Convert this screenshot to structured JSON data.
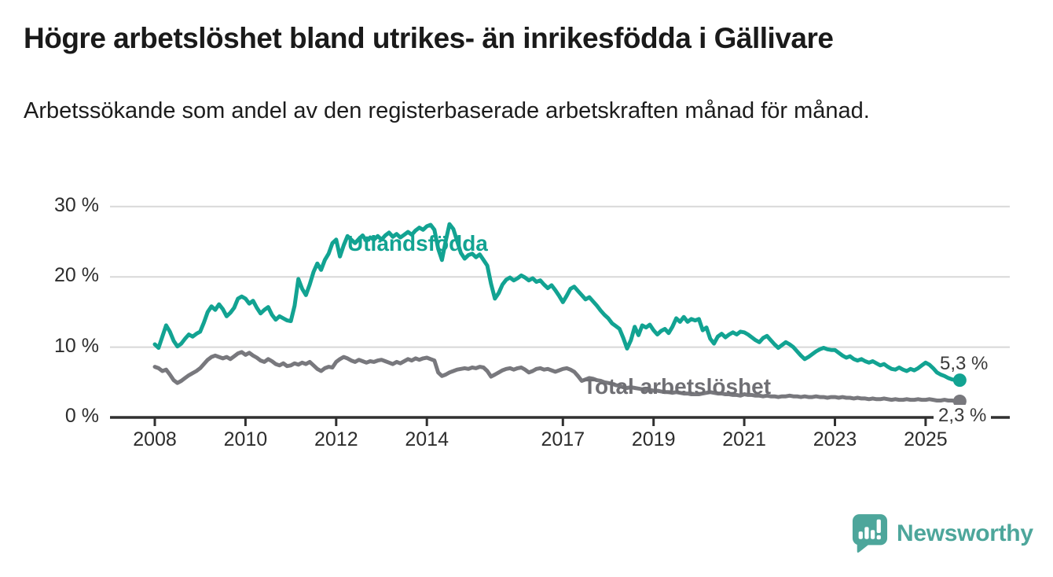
{
  "header": {
    "title": "Högre arbetslöshet bland utrikes- än inrikesfödda i Gällivare",
    "subtitle": "Arbetssökande som andel av den registerbaserade arbetskraften månad för månad."
  },
  "footer": {
    "brand": "Newsworthy",
    "brand_icon": "speech-bubble-bar-chart-icon",
    "brand_color": "#4da69b"
  },
  "colors": {
    "foreign_born_line": "#12a392",
    "total_line": "#78787d",
    "total_label": "#6f6f74",
    "end_label_text": "#3a3a3a",
    "axis": "#303030",
    "gridline": "#d8d8d8",
    "tick_text": "#2d2d2d"
  },
  "chart_data": {
    "type": "line",
    "title": "Högre arbetslöshet bland utrikes- än inrikesfödda i Gällivare",
    "subtitle": "Arbetssökande som andel av den registerbaserade arbetskraften månad för månad.",
    "grid": "horizontal-only",
    "legend": "direct-line-labels",
    "x_axis": {
      "ticks": [
        2008,
        2010,
        2012,
        2014,
        2017,
        2019,
        2021,
        2023,
        2025
      ],
      "tick_labels": [
        "2008",
        "2010",
        "2012",
        "2014",
        "2017",
        "2019",
        "2021",
        "2023",
        "2025"
      ],
      "range_years": [
        2007.0,
        2026.9
      ]
    },
    "y_axis": {
      "ticks": [
        0,
        10,
        20,
        30
      ],
      "tick_labels": [
        "0 %",
        "10 %",
        "20 %",
        "30 %"
      ],
      "unit": "%",
      "range": [
        0,
        31
      ]
    },
    "series": [
      {
        "name": "Utlandsfödda",
        "color": "#12a392",
        "start": "2008-01",
        "frequency": "monthly",
        "end_label": "5,3 %",
        "end_value": 5.3,
        "values": [
          10.4,
          9.9,
          11.5,
          13.1,
          12.2,
          10.9,
          10.1,
          10.5,
          11.2,
          11.8,
          11.5,
          11.9,
          12.2,
          13.5,
          15.0,
          15.8,
          15.3,
          16.1,
          15.4,
          14.4,
          14.9,
          15.6,
          16.9,
          17.2,
          16.9,
          16.2,
          16.6,
          15.6,
          14.8,
          15.3,
          15.7,
          14.6,
          13.9,
          14.4,
          14.1,
          13.8,
          13.7,
          15.9,
          19.7,
          18.3,
          17.4,
          18.9,
          20.7,
          21.9,
          21.0,
          22.4,
          23.3,
          24.8,
          25.3,
          22.9,
          24.5,
          25.8,
          25.3,
          24.8,
          25.4,
          25.9,
          25.1,
          25.6,
          25.3,
          25.8,
          25.3,
          25.9,
          26.3,
          25.7,
          26.1,
          25.6,
          26.0,
          26.4,
          26.0,
          26.6,
          27.0,
          26.7,
          27.2,
          27.4,
          26.7,
          24.0,
          22.4,
          25.1,
          27.5,
          26.8,
          25.1,
          23.4,
          22.6,
          23.1,
          23.3,
          22.8,
          23.2,
          22.4,
          21.6,
          19.0,
          16.9,
          17.7,
          18.9,
          19.6,
          19.9,
          19.5,
          19.8,
          20.2,
          19.9,
          19.5,
          19.8,
          19.3,
          19.5,
          18.9,
          18.4,
          18.8,
          18.1,
          17.3,
          16.4,
          17.3,
          18.3,
          18.6,
          18.0,
          17.4,
          16.8,
          17.1,
          16.5,
          15.9,
          15.2,
          14.6,
          14.1,
          13.4,
          13.0,
          12.6,
          11.3,
          9.8,
          11.0,
          12.9,
          11.7,
          13.1,
          12.8,
          13.2,
          12.4,
          11.8,
          12.3,
          12.6,
          12.0,
          12.9,
          14.1,
          13.6,
          14.3,
          13.6,
          14.0,
          13.8,
          14.0,
          12.4,
          12.8,
          11.2,
          10.5,
          11.5,
          11.9,
          11.4,
          11.8,
          12.1,
          11.8,
          12.2,
          12.1,
          11.8,
          11.4,
          11.0,
          10.7,
          11.3,
          11.6,
          11.0,
          10.4,
          9.9,
          10.3,
          10.7,
          10.4,
          10.0,
          9.4,
          8.8,
          8.3,
          8.6,
          9.0,
          9.4,
          9.7,
          9.9,
          9.7,
          9.6,
          9.6,
          9.2,
          8.8,
          8.5,
          8.7,
          8.3,
          8.1,
          8.3,
          8.0,
          7.8,
          8.0,
          7.7,
          7.4,
          7.6,
          7.2,
          6.9,
          6.8,
          7.1,
          6.8,
          6.6,
          6.9,
          6.7,
          7.0,
          7.4,
          7.8,
          7.5,
          7.0,
          6.4,
          6.1,
          5.9,
          5.6,
          5.4,
          5.3
        ]
      },
      {
        "name": "Total arbetslöshet",
        "color": "#78787d",
        "start": "2008-01",
        "frequency": "monthly",
        "end_label": "2,3 %",
        "end_value": 2.3,
        "values": [
          7.2,
          7.0,
          6.6,
          6.8,
          6.1,
          5.3,
          4.9,
          5.2,
          5.6,
          6.0,
          6.3,
          6.6,
          7.0,
          7.6,
          8.2,
          8.6,
          8.8,
          8.6,
          8.4,
          8.6,
          8.3,
          8.7,
          9.1,
          9.3,
          8.9,
          9.2,
          8.8,
          8.5,
          8.1,
          7.9,
          8.3,
          8.0,
          7.6,
          7.4,
          7.7,
          7.3,
          7.4,
          7.7,
          7.5,
          7.8,
          7.6,
          7.9,
          7.4,
          6.9,
          6.6,
          7.0,
          7.2,
          7.1,
          7.9,
          8.3,
          8.6,
          8.4,
          8.1,
          7.9,
          8.2,
          8.0,
          7.8,
          8.0,
          7.9,
          8.1,
          8.2,
          8.0,
          7.8,
          7.6,
          7.9,
          7.7,
          8.0,
          8.3,
          8.1,
          8.4,
          8.2,
          8.4,
          8.5,
          8.3,
          8.1,
          6.4,
          5.9,
          6.1,
          6.4,
          6.6,
          6.8,
          6.9,
          7.0,
          6.9,
          7.1,
          7.0,
          7.2,
          7.1,
          6.6,
          5.8,
          6.1,
          6.4,
          6.7,
          6.9,
          7.0,
          6.8,
          7.0,
          7.1,
          6.8,
          6.4,
          6.6,
          6.9,
          7.0,
          6.8,
          6.9,
          6.7,
          6.5,
          6.7,
          6.9,
          7.0,
          6.8,
          6.5,
          5.9,
          5.2,
          5.4,
          5.6,
          5.5,
          5.3,
          5.2,
          5.0,
          4.9,
          4.8,
          4.6,
          4.5,
          4.3,
          4.2,
          4.3,
          4.2,
          4.1,
          4.0,
          3.9,
          3.9,
          3.8,
          3.8,
          3.7,
          3.6,
          3.6,
          3.5,
          3.6,
          3.5,
          3.4,
          3.4,
          3.3,
          3.3,
          3.3,
          3.4,
          3.5,
          3.6,
          3.5,
          3.4,
          3.4,
          3.3,
          3.3,
          3.2,
          3.2,
          3.1,
          3.3,
          3.2,
          3.2,
          3.1,
          3.1,
          3.0,
          3.1,
          3.0,
          3.0,
          2.9,
          3.0,
          3.0,
          3.1,
          3.0,
          3.0,
          2.9,
          3.0,
          2.9,
          2.9,
          3.0,
          2.9,
          2.9,
          2.8,
          2.9,
          2.9,
          2.8,
          2.9,
          2.8,
          2.8,
          2.7,
          2.8,
          2.7,
          2.7,
          2.6,
          2.7,
          2.6,
          2.6,
          2.7,
          2.6,
          2.5,
          2.6,
          2.5,
          2.5,
          2.6,
          2.5,
          2.5,
          2.6,
          2.5,
          2.5,
          2.6,
          2.5,
          2.4,
          2.4,
          2.5,
          2.4,
          2.4,
          2.3
        ]
      }
    ]
  }
}
